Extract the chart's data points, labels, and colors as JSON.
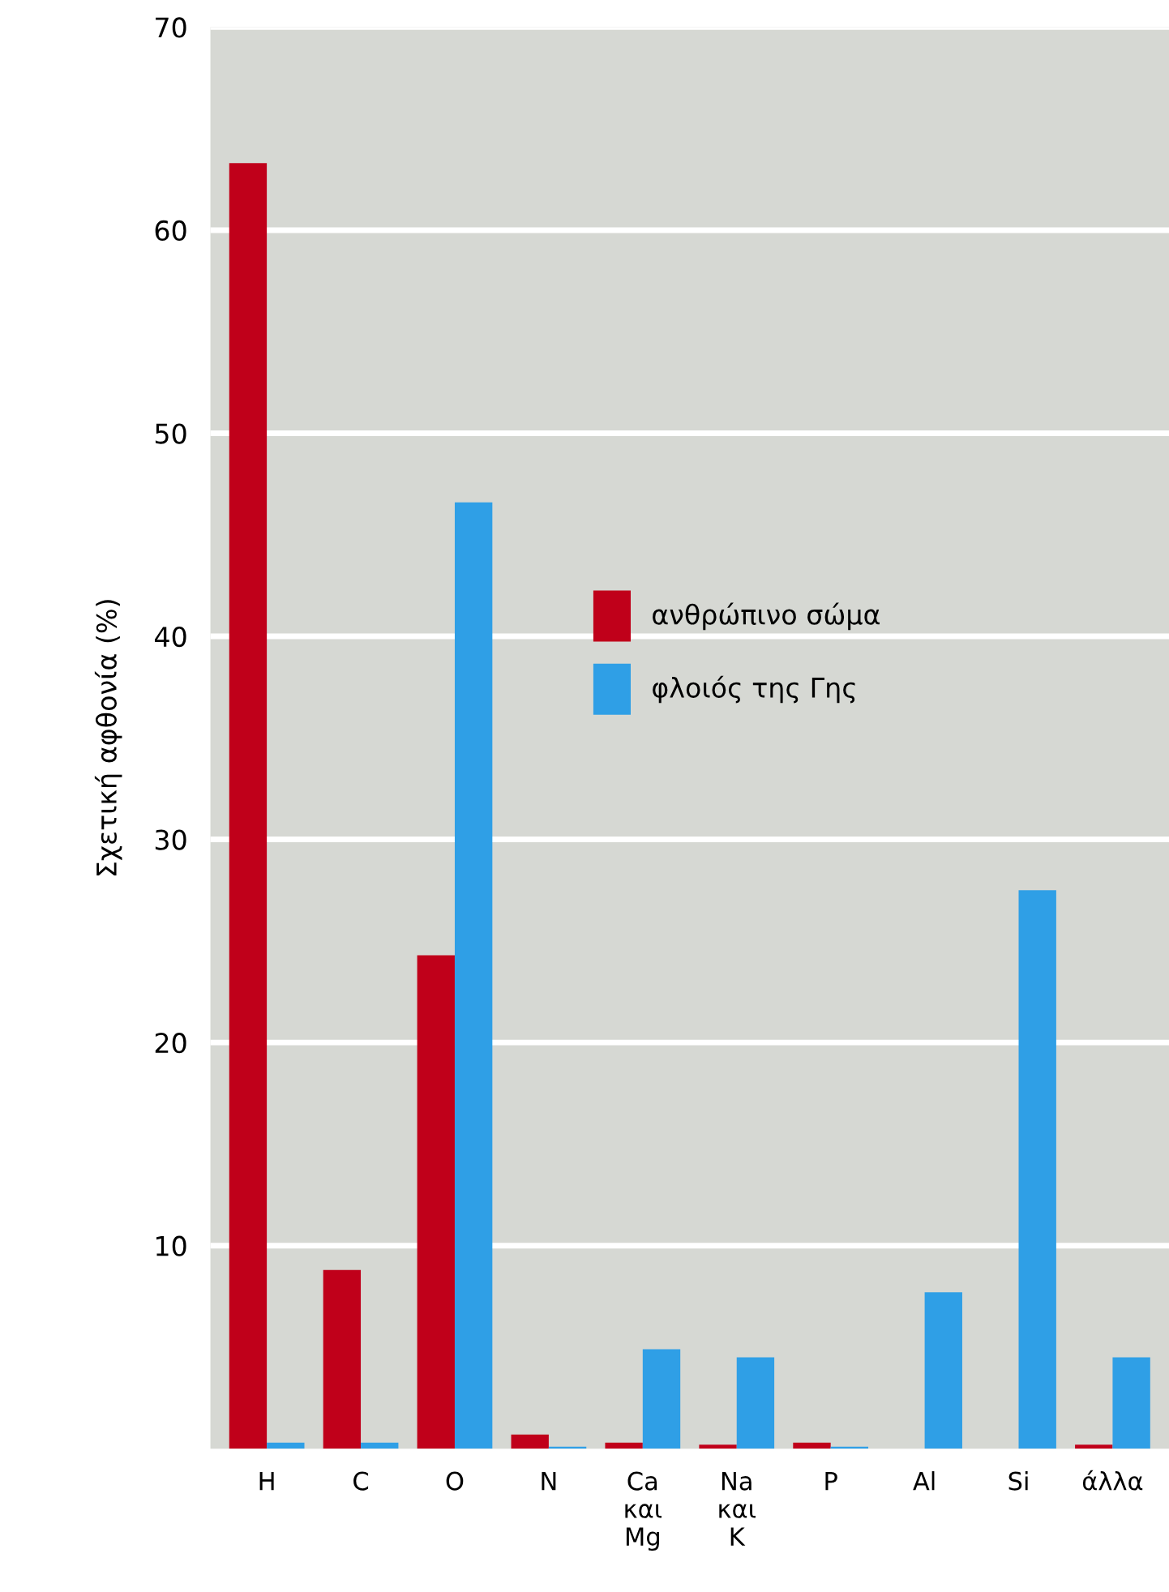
{
  "chart_data": {
    "type": "bar",
    "ylabel": "Σχετική αφθονία (%)",
    "categories": [
      "H",
      "C",
      "O",
      "N",
      "Ca\nκαι\nMg",
      "Na\nκαι\nK",
      "P",
      "Al",
      "Si",
      "άλλα"
    ],
    "series": [
      {
        "name": "ανθρώπινο σώμα",
        "color": "#c0001a",
        "values": [
          63.3,
          8.8,
          24.3,
          0.7,
          0.3,
          0.2,
          0.3,
          null,
          null,
          0.2
        ]
      },
      {
        "name": "φλοιός της Γης",
        "color": "#2f9fe6",
        "values": [
          0.3,
          0.3,
          46.6,
          0.1,
          4.9,
          4.5,
          0.1,
          7.7,
          27.5,
          4.5
        ]
      }
    ],
    "ylim": [
      0,
      70
    ],
    "yticks": [
      10,
      20,
      30,
      40,
      50,
      60,
      70
    ],
    "grid": "y",
    "legend": "center"
  }
}
